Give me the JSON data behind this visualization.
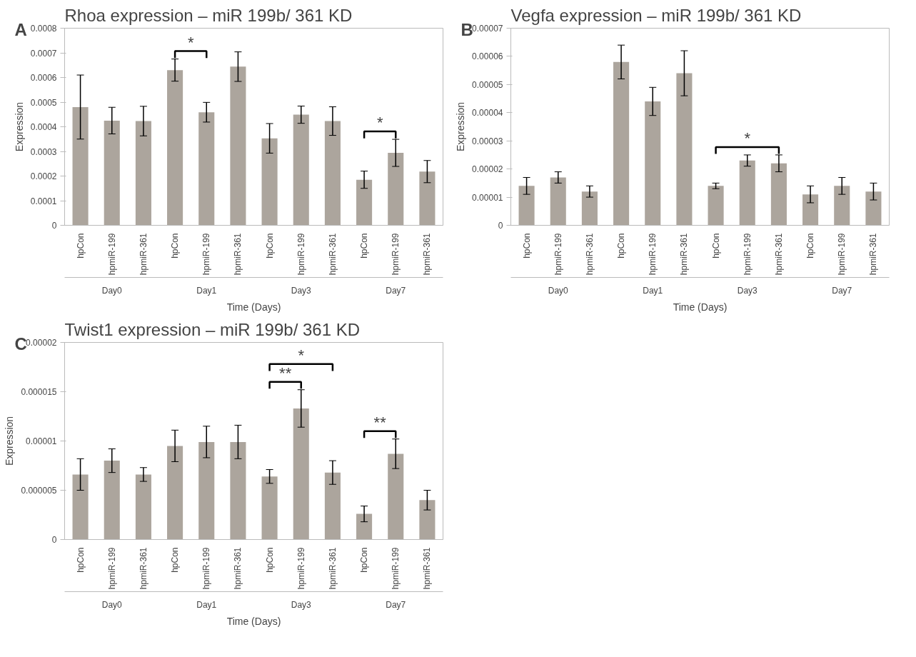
{
  "chart_data": [
    {
      "type": "bar",
      "title": "Rhoa expression – miR 199b/ 361 KD",
      "xlabel": "Time (Days)",
      "ylabel": "Expression",
      "categories": [
        "hpCon",
        "hpmiR-199",
        "hpmiR-361",
        "hpCon",
        "hpmiR-199",
        "hpmiR-361",
        "hpCon",
        "hpmiR-199",
        "hpmiR-361",
        "hpCon",
        "hpmiR-199",
        "hpmiR-361"
      ],
      "values": [
        0.00048,
        0.000425,
        0.000423,
        0.00063,
        0.000459,
        0.000644,
        0.000353,
        0.000449,
        0.000423,
        0.000185,
        0.000294,
        0.000218
      ],
      "errors": [
        0.00013,
        5.4e-05,
        6e-05,
        4.5e-05,
        4e-05,
        6e-05,
        6e-05,
        3.5e-05,
        5.8e-05,
        3.5e-05,
        5.5e-05,
        4.5e-05
      ],
      "color": "#aca59d",
      "ylim": [
        0,
        0.0008
      ],
      "yticks": [
        0,
        0.0001,
        0.0002,
        0.0003,
        0.0004,
        0.0005,
        0.0006,
        0.0007,
        0.0008
      ],
      "grid": false,
      "annotations": [
        "A",
        "Day0",
        "Day1",
        "Day3",
        "Day7",
        "*",
        "*"
      ]
    },
    {
      "type": "bar",
      "title": "Vegfa expression – miR 199b/ 361 KD",
      "xlabel": "Time (Days)",
      "ylabel": "Expression",
      "categories": [
        "hpCon",
        "hpmiR-199",
        "hpmiR-361",
        "hpCon",
        "hpmiR-199",
        "hpmiR-361",
        "hpCon",
        "hpmiR-199",
        "hpmiR-361",
        "hpCon",
        "hpmiR-199",
        "hpmiR-361"
      ],
      "values": [
        1.4e-05,
        1.7e-05,
        1.2e-05,
        5.8e-05,
        4.4e-05,
        5.4e-05,
        1.4e-05,
        2.3e-05,
        2.2e-05,
        1.1e-05,
        1.4e-05,
        1.2e-05
      ],
      "errors": [
        3e-06,
        2e-06,
        2e-06,
        6e-06,
        5e-06,
        8e-06,
        1e-06,
        2e-06,
        3e-06,
        3e-06,
        3e-06,
        3e-06
      ],
      "color": "#aca59d",
      "ylim": [
        0,
        7e-05
      ],
      "yticks": [
        0,
        {
          "value": 1e-05,
          "label": "0.00001"
        },
        {
          "value": 2e-05,
          "label": "0.00002"
        },
        {
          "value": 3e-05,
          "label": "0.00003"
        },
        {
          "value": 4e-05,
          "label": "0.00004"
        },
        {
          "value": 5e-05,
          "label": "0.00005"
        },
        {
          "value": 6e-05,
          "label": "0.00006"
        },
        {
          "value": 7e-05,
          "label": "0.00007"
        }
      ],
      "grid": false,
      "annotations": [
        "B",
        "Day0",
        "Day1",
        "Day3",
        "Day7",
        "*"
      ]
    },
    {
      "type": "bar",
      "title": "Twist1 expression – miR 199b/ 361 KD",
      "xlabel": "Time (Days)",
      "ylabel": "Expression",
      "categories": [
        "hpCon",
        "hpmiR-199",
        "hpmiR-361",
        "hpCon",
        "hpmiR-199",
        "hpmiR-361",
        "hpCon",
        "hpmiR-199",
        "hpmiR-361",
        "hpCon",
        "hpmiR-199",
        "hpmiR-361"
      ],
      "values": [
        6.6e-06,
        8e-06,
        6.6e-06,
        9.5e-06,
        9.9e-06,
        9.9e-06,
        6.4e-06,
        1.33e-05,
        6.8e-06,
        2.6e-06,
        8.7e-06,
        4e-06
      ],
      "errors": [
        1.6e-06,
        1.2e-06,
        7e-07,
        1.6e-06,
        1.6e-06,
        1.7e-06,
        7e-07,
        1.9e-06,
        1.2e-06,
        8e-07,
        1.5e-06,
        1e-06
      ],
      "color": "#aca59d",
      "ylim": [
        0,
        2e-05
      ],
      "yticks": [
        0,
        {
          "value": 5e-06,
          "label": "0.000005"
        },
        {
          "value": 1e-05,
          "label": "0.00001"
        },
        {
          "value": 1.5e-05,
          "label": "0.000015"
        },
        {
          "value": 2e-05,
          "label": "0.00002"
        }
      ],
      "grid": false,
      "annotations": [
        "C",
        "Day0",
        "Day1",
        "Day3",
        "Day7",
        "*",
        "**",
        "**"
      ]
    }
  ]
}
